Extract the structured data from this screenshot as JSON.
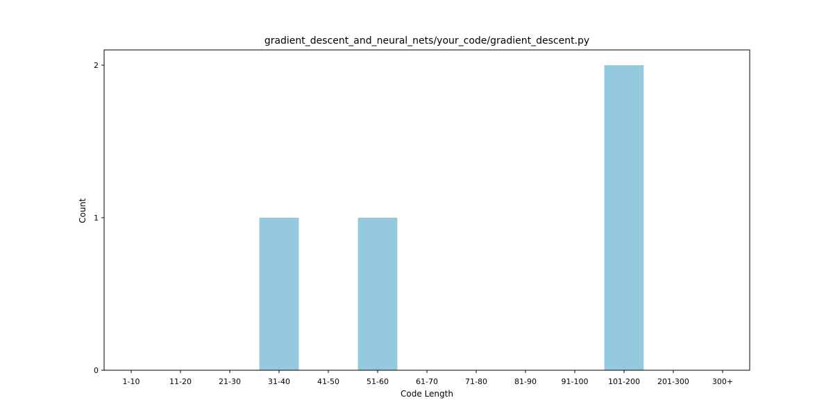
{
  "chart_data": {
    "type": "bar",
    "title": "gradient_descent_and_neural_nets/your_code/gradient_descent.py",
    "xlabel": "Code Length",
    "ylabel": "Count",
    "categories": [
      "1-10",
      "11-20",
      "21-30",
      "31-40",
      "41-50",
      "51-60",
      "61-70",
      "71-80",
      "81-90",
      "91-100",
      "101-200",
      "201-300",
      "300+"
    ],
    "values": [
      0,
      0,
      0,
      1,
      0,
      1,
      0,
      0,
      0,
      0,
      2,
      0,
      0
    ],
    "yticks": [
      0,
      1,
      2
    ],
    "ylim": [
      0,
      2.1
    ],
    "grid": false,
    "bar_color": "#95c9dd"
  }
}
